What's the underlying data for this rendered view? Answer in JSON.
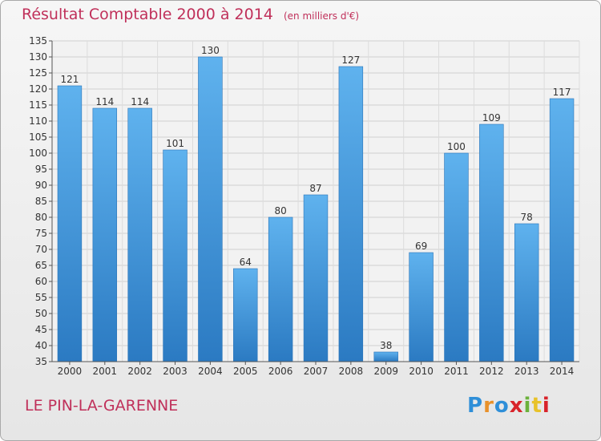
{
  "chart_data": {
    "type": "bar",
    "title": "Résultat Comptable 2000 à 2014",
    "subtitle": "(en milliers d'€)",
    "categories": [
      "2000",
      "2001",
      "2002",
      "2003",
      "2004",
      "2005",
      "2006",
      "2007",
      "2008",
      "2009",
      "2010",
      "2011",
      "2012",
      "2013",
      "2014"
    ],
    "values": [
      121,
      114,
      114,
      101,
      130,
      64,
      80,
      87,
      127,
      38,
      69,
      100,
      109,
      78,
      117
    ],
    "ylim": [
      35,
      135
    ],
    "ytick_step": 5,
    "xlabel": "",
    "ylabel": "",
    "grid": true,
    "bar_color": "#3a8fd6"
  },
  "footer": {
    "city": "LE PIN-LA-GARENNE",
    "logo_letters": [
      "P",
      "r",
      "o",
      "x",
      "i",
      "t",
      "i"
    ],
    "logo_colors": [
      "#2f8fd8",
      "#e8912a",
      "#2f8fd8",
      "#d8232a",
      "#6cb23c",
      "#e8c22a",
      "#d8232a"
    ]
  }
}
